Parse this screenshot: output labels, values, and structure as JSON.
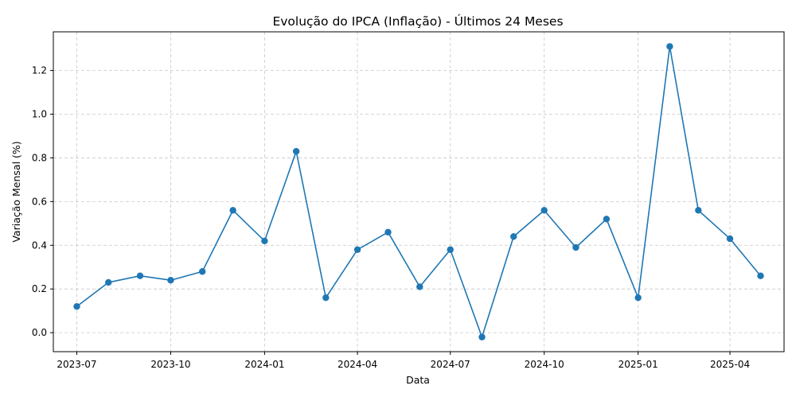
{
  "chart_data": {
    "type": "line",
    "title": "Evolução do IPCA (Inflação) - Últimos 24 Meses",
    "xlabel": "Data",
    "ylabel": "Variação Mensal (%)",
    "x": [
      "2023-07",
      "2023-08",
      "2023-09",
      "2023-10",
      "2023-11",
      "2023-12",
      "2024-01",
      "2024-02",
      "2024-03",
      "2024-04",
      "2024-05",
      "2024-06",
      "2024-07",
      "2024-08",
      "2024-09",
      "2024-10",
      "2024-11",
      "2024-12",
      "2025-01",
      "2025-02",
      "2025-03",
      "2025-04",
      "2025-05"
    ],
    "series": [
      {
        "values": [
          0.12,
          0.23,
          0.26,
          0.24,
          0.28,
          0.56,
          0.42,
          0.83,
          0.16,
          0.38,
          0.46,
          0.21,
          0.38,
          -0.02,
          0.44,
          0.56,
          0.39,
          0.52,
          0.16,
          1.31,
          0.56,
          0.43,
          0.26
        ],
        "color": "#1f77b4",
        "marker": "circle"
      }
    ],
    "x_ticks": [
      "2023-07",
      "2023-10",
      "2024-01",
      "2024-04",
      "2024-07",
      "2024-10",
      "2025-01",
      "2025-04"
    ],
    "y_ticks": [
      "0.0",
      "0.2",
      "0.4",
      "0.6",
      "0.8",
      "1.0",
      "1.2"
    ],
    "ylim": [
      -0.087,
      1.377
    ],
    "xlim": [
      "2023-06-08",
      "2025-05-24"
    ],
    "grid": true,
    "grid_style": "dashed",
    "legend": false
  }
}
